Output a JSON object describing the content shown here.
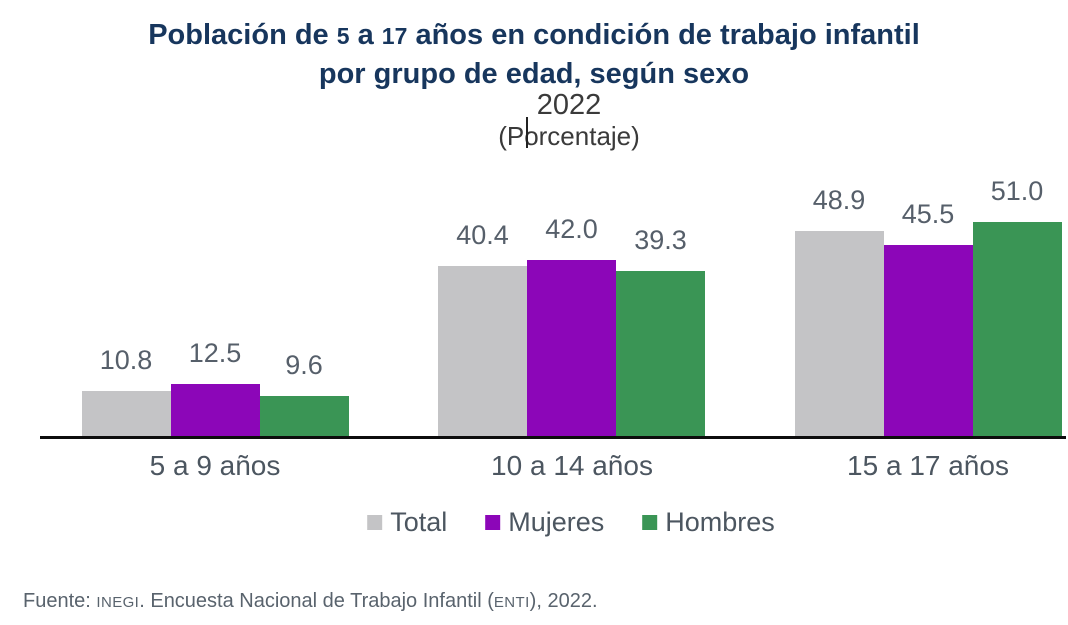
{
  "title": {
    "segments_line1": [
      "Población de ",
      "5",
      " a ",
      "17",
      " años en condición de trabajo infantil"
    ],
    "line2": "por grupo de edad, según sexo",
    "color": "#17365D"
  },
  "subtitle": {
    "year": "2022",
    "unit": "(Porcentaje)",
    "text_cursor_visible": true
  },
  "chart_data": {
    "type": "bar",
    "title": "Población de 5 a 17 años en condición de trabajo infantil por grupo de edad, según sexo",
    "subtitle": "2022",
    "unit_label": "(Porcentaje)",
    "categories": [
      "5 a 9 años",
      "10 a 14 años",
      "15 a 17 años"
    ],
    "series": [
      {
        "name": "Total",
        "color": "#C4C4C6",
        "values": [
          10.8,
          40.4,
          48.9
        ]
      },
      {
        "name": "Mujeres",
        "color": "#8C06B8",
        "values": [
          12.5,
          42.0,
          45.5
        ]
      },
      {
        "name": "Hombres",
        "color": "#3A9555",
        "values": [
          9.6,
          39.3,
          51.0
        ]
      }
    ],
    "value_labels_shown": true,
    "value_decimals": 1,
    "ylim": [
      0,
      55
    ],
    "grid": false,
    "legend_position": "bottom",
    "axis_line_color": "#0D0D0D",
    "value_label_color": "#565F6A"
  },
  "footer": {
    "segments": [
      "Fuente: ",
      "INEGI",
      ". Encuesta Nacional de Trabajo Infantil (",
      "ENTI",
      "), 2022."
    ]
  }
}
